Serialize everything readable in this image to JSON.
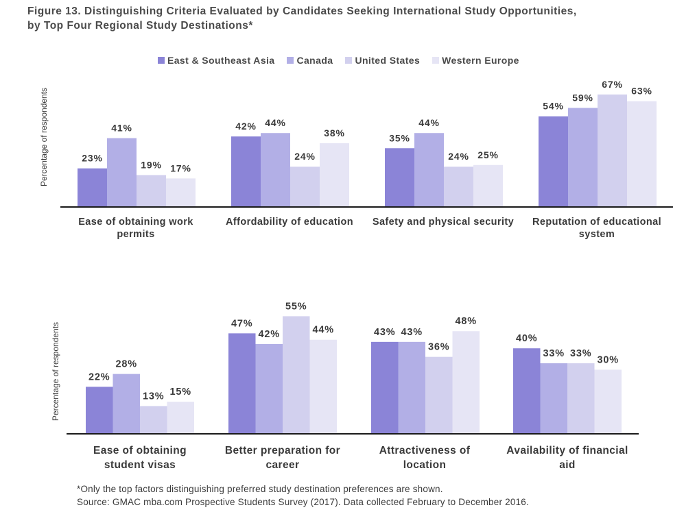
{
  "title": {
    "line1": "Figure 13. Distinguishing Criteria Evaluated by Candidates Seeking International Study Opportunities,",
    "line2": "by Top Four Regional Study Destinations*"
  },
  "legend": [
    {
      "name": "East & Southeast Asia",
      "color": "#8b84d7"
    },
    {
      "name": "Canada",
      "color": "#b2afe6"
    },
    {
      "name": "United States",
      "color": "#d2d0ee"
    },
    {
      "name": "Western Europe",
      "color": "#e6e5f5"
    }
  ],
  "footnote": {
    "line1": "*Only the top factors distinguishing preferred study destination preferences are shown.",
    "line2": "Source: GMAC mba.com Prospective Students Survey (2017). Data collected February to December 2016."
  },
  "chart_data": [
    {
      "type": "bar",
      "ylabel": "Percentage of respondents",
      "ylim": [
        0,
        70
      ],
      "categories": [
        [
          "Ease of obtaining work",
          "permits"
        ],
        [
          "Affordability of education"
        ],
        [
          "Safety and physical security"
        ],
        [
          "Reputation of educational",
          "system"
        ]
      ],
      "series": [
        {
          "name": "East & Southeast Asia",
          "values": [
            23,
            42,
            35,
            54
          ]
        },
        {
          "name": "Canada",
          "values": [
            41,
            44,
            44,
            59
          ]
        },
        {
          "name": "United States",
          "values": [
            19,
            24,
            24,
            67
          ]
        },
        {
          "name": "Western Europe",
          "values": [
            17,
            38,
            25,
            63
          ]
        }
      ]
    },
    {
      "type": "bar",
      "ylabel": "Percentage of respondents",
      "ylim": [
        0,
        60
      ],
      "categories": [
        [
          "Ease of obtaining",
          "student visas"
        ],
        [
          "Better preparation for",
          "career"
        ],
        [
          "Attractiveness of",
          "location"
        ],
        [
          "Availability of financial",
          "aid"
        ]
      ],
      "series": [
        {
          "name": "East & Southeast Asia",
          "values": [
            22,
            47,
            43,
            40
          ]
        },
        {
          "name": "Canada",
          "values": [
            28,
            42,
            43,
            33
          ]
        },
        {
          "name": "United States",
          "values": [
            13,
            55,
            36,
            33
          ]
        },
        {
          "name": "Western Europe",
          "values": [
            15,
            44,
            48,
            30
          ]
        }
      ]
    }
  ]
}
